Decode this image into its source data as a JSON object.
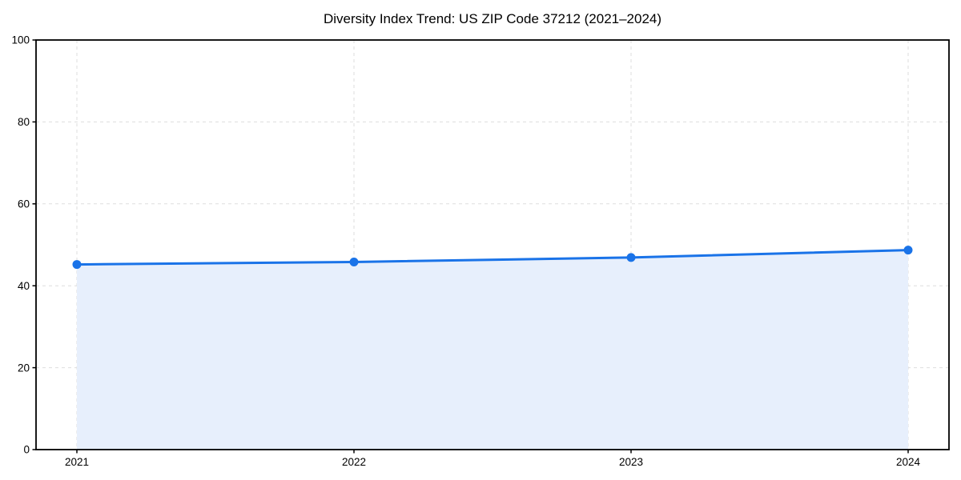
{
  "chart_data": {
    "type": "line",
    "title": "Diversity Index Trend: US ZIP Code 37212 (2021–2024)",
    "categories": [
      "2021",
      "2022",
      "2023",
      "2024"
    ],
    "x": [
      2021,
      2022,
      2023,
      2024
    ],
    "series": [
      {
        "name": "Diversity Index",
        "values": [
          45.2,
          45.8,
          46.9,
          48.7
        ]
      }
    ],
    "xlabel": "",
    "ylabel": "",
    "ylim": [
      0,
      100
    ],
    "yticks": [
      0,
      20,
      40,
      60,
      80,
      100
    ],
    "ytick_labels": [
      "0",
      "20",
      "40",
      "60",
      "80",
      "100"
    ],
    "grid": true,
    "grid_style": "dashed",
    "area_fill": true,
    "legend_position": "none",
    "colors": {
      "line": "#1a73e8",
      "marker": "#1a73e8",
      "area": "#e7effc",
      "grid": "#dedede",
      "axis": "#000000",
      "background": "#ffffff"
    }
  }
}
